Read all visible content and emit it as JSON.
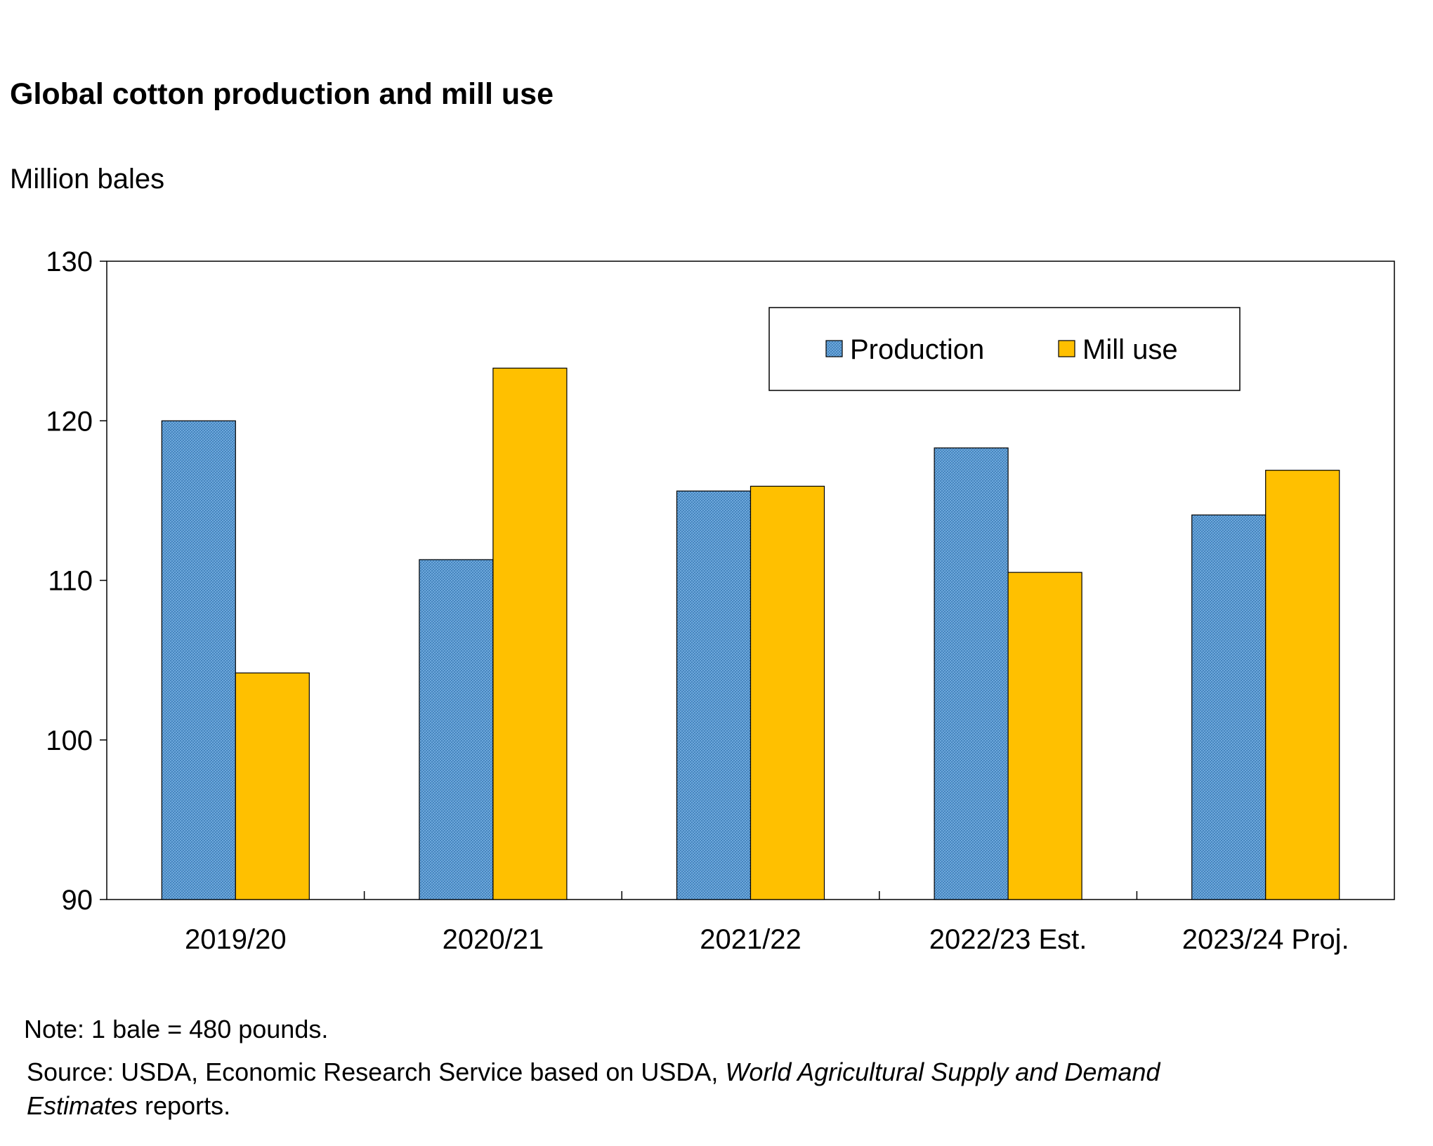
{
  "chart_data": {
    "type": "bar",
    "title": "Global cotton production and mill use",
    "ylabel": "Million bales",
    "xlabel": "",
    "categories": [
      "2019/20",
      "2020/21",
      "2021/22",
      "2022/23 Est.",
      "2023/24 Proj."
    ],
    "series": [
      {
        "name": "Production",
        "values": [
          120.0,
          111.3,
          115.6,
          118.3,
          114.1
        ],
        "color": "#5B9BD5"
      },
      {
        "name": "Mill use",
        "values": [
          104.2,
          123.3,
          115.9,
          110.5,
          116.9
        ],
        "color": "#FFC000"
      }
    ],
    "ylim": [
      90,
      130
    ],
    "yticks": [
      "90",
      "100",
      "110",
      "120",
      "130"
    ],
    "grid": false,
    "legend_position": "top-right"
  },
  "notes": {
    "note": "Note: 1 bale = 480 pounds.",
    "source_prefix": "Source: USDA, Economic Research Service based on USDA, ",
    "source_italic_1": "World Agricultural Supply and Demand",
    "source_italic_2": "Estimates",
    "source_suffix": " reports."
  }
}
